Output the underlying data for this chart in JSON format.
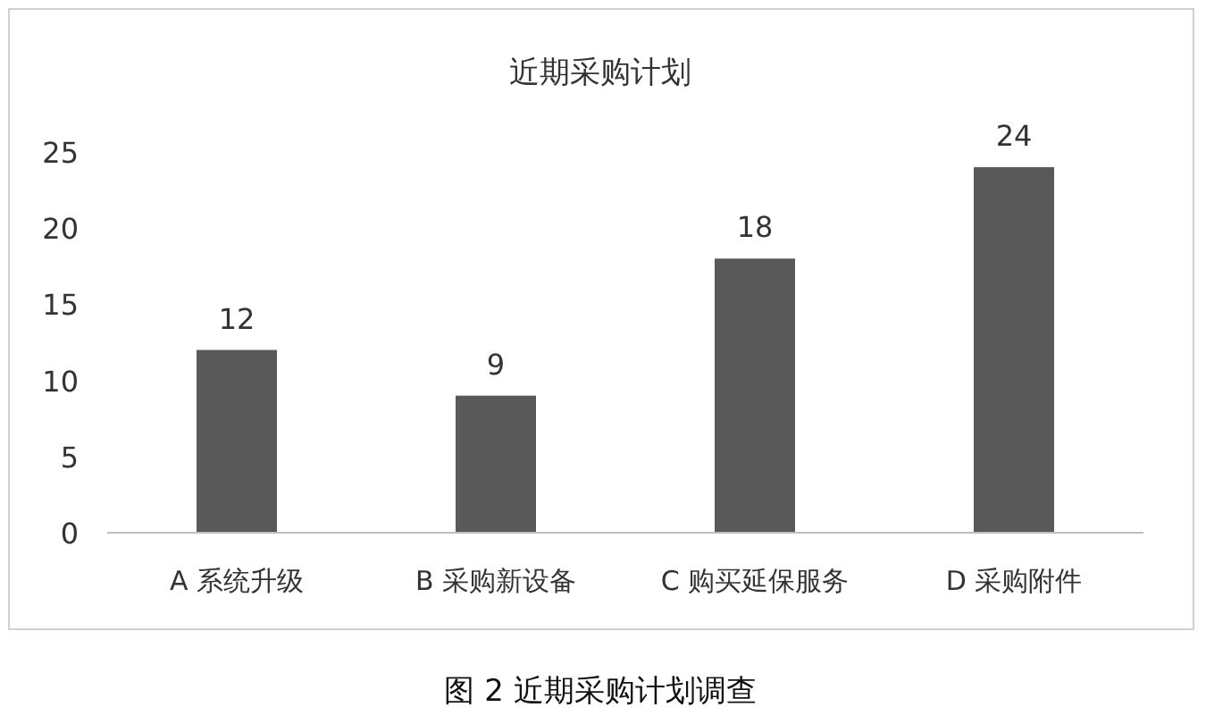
{
  "chart_data": {
    "type": "bar",
    "title": "近期采购计划",
    "categories": [
      "A 系统升级",
      "B 采购新设备",
      "C 购买延保服务",
      "D 采购附件"
    ],
    "values": [
      12,
      9,
      18,
      24
    ],
    "color": "#595959",
    "ylim": [
      0,
      25
    ],
    "yticks": [
      0,
      5,
      10,
      15,
      20,
      25
    ],
    "grid": false,
    "data_labels": true,
    "annotations": [
      "图 2 近期采购计划调查"
    ]
  }
}
